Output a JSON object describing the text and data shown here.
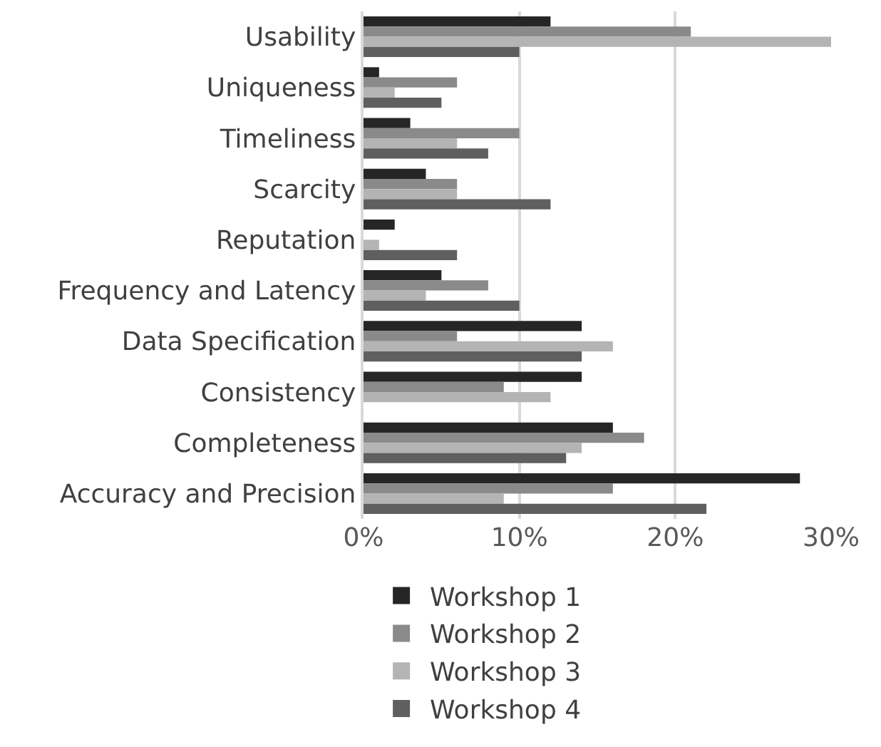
{
  "chart_data": {
    "type": "bar",
    "orientation": "horizontal",
    "categories": [
      "Usability",
      "Uniqueness",
      "Timeliness",
      "Scarcity",
      "Reputation",
      "Frequency and Latency",
      "Data Specification",
      "Consistency",
      "Completeness",
      "Accuracy and Precision"
    ],
    "series": [
      {
        "name": "Workshop 1",
        "color": "#262626",
        "values": [
          12,
          1,
          3,
          4,
          2,
          5,
          14,
          14,
          16,
          28
        ]
      },
      {
        "name": "Workshop 2",
        "color": "#8a8a8a",
        "values": [
          21,
          6,
          10,
          6,
          0,
          8,
          6,
          9,
          18,
          16
        ]
      },
      {
        "name": "Workshop 3",
        "color": "#b4b4b4",
        "values": [
          30,
          2,
          6,
          6,
          1,
          4,
          16,
          12,
          14,
          9
        ]
      },
      {
        "name": "Workshop 4",
        "color": "#5f5f5f",
        "values": [
          10,
          5,
          8,
          12,
          6,
          10,
          14,
          0,
          13,
          22
        ]
      }
    ],
    "xlim": [
      0,
      30
    ],
    "xticks": [
      {
        "value": 0,
        "label": "0%"
      },
      {
        "value": 10,
        "label": "10%"
      },
      {
        "value": 20,
        "label": "20%"
      },
      {
        "value": 30,
        "label": "30%"
      }
    ],
    "grid": "x",
    "legend": "bottom"
  }
}
